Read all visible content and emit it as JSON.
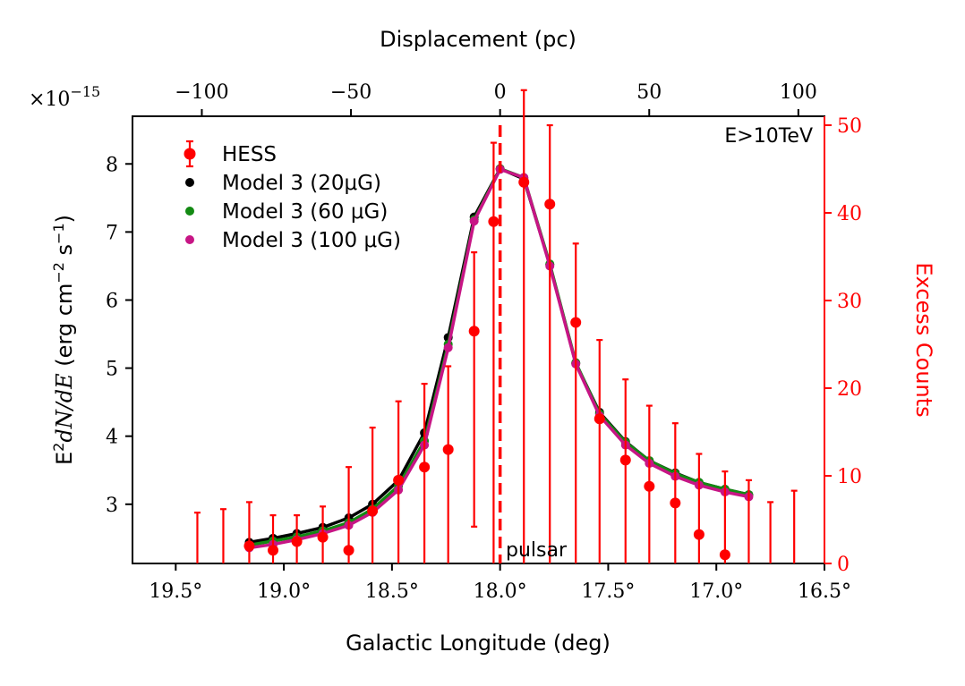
{
  "chart_data": {
    "type": "line",
    "x_axis": {
      "label": "Galactic Longitude (deg)",
      "range": [
        19.7,
        16.5
      ],
      "reversed": true,
      "ticks": [
        19.5,
        19.0,
        18.5,
        18.0,
        17.5,
        17.0,
        16.5
      ],
      "tick_labels": [
        "19.5°",
        "19.0°",
        "18.5°",
        "18.0°",
        "17.5°",
        "17.0°",
        "16.5°"
      ]
    },
    "top_axis": {
      "label": "Displacement (pc)",
      "ticks": [
        -100,
        -50,
        0,
        50,
        100
      ],
      "tick_labels": [
        "−100",
        "−50",
        "0",
        "50",
        "100"
      ],
      "deg_at_zero": 18.0,
      "pc_per_deg": 72.5
    },
    "y_axis": {
      "label_prefix": "E",
      "label_sup": "2",
      "label_math": "dN/dE",
      "label_units": "(erg cm",
      "label_sup2": "−2",
      "label_units2": " s",
      "label_sup3": "−1",
      "label_close": ")",
      "range": [
        2.13,
        8.7
      ],
      "ticks": [
        3,
        4,
        5,
        6,
        7,
        8
      ],
      "tick_labels": [
        "3",
        "4",
        "5",
        "6",
        "7",
        "8"
      ],
      "multiplier_base": "×10",
      "multiplier_exp": "−15"
    },
    "y2_axis": {
      "label": "Excess Counts",
      "color": "#ff0000",
      "range": [
        0,
        50
      ],
      "ticks": [
        0,
        10,
        20,
        30,
        40,
        50
      ],
      "tick_labels": [
        "0",
        "10",
        "20",
        "30",
        "40",
        "50"
      ]
    },
    "annotations": {
      "energy": "E>10TeV",
      "pulsar": "pulsar",
      "pulsar_longitude": 18.0
    },
    "legend": {
      "placement": "upper-left",
      "entries": [
        {
          "name": "HESS",
          "color": "#ff0000",
          "marker": "errorbar"
        },
        {
          "name": "Model 3 (20μG)",
          "color": "#000000",
          "marker": "dot"
        },
        {
          "name": "Model 3 (60 μG)",
          "color": "#138a13",
          "marker": "dot"
        },
        {
          "name": "Model 3 (100 μG)",
          "color": "#c71585",
          "marker": "dot"
        }
      ]
    },
    "series": [
      {
        "name": "Model 3 (20μG)",
        "color": "#000000",
        "x": [
          19.16,
          19.05,
          18.94,
          18.82,
          18.7,
          18.59,
          18.47,
          18.35,
          18.24,
          18.12,
          18.0,
          17.89,
          17.77,
          17.65,
          17.54,
          17.42,
          17.31,
          17.19,
          17.08,
          16.96,
          16.85
        ],
        "y": [
          2.44,
          2.5,
          2.57,
          2.66,
          2.8,
          3.0,
          3.35,
          4.05,
          5.45,
          7.22,
          7.93,
          7.78,
          6.52,
          5.07,
          4.35,
          3.92,
          3.64,
          3.46,
          3.32,
          3.22,
          3.14
        ]
      },
      {
        "name": "Model 3 (60 μG)",
        "color": "#138a13",
        "x": [
          19.16,
          19.05,
          18.94,
          18.82,
          18.7,
          18.59,
          18.47,
          18.35,
          18.24,
          18.12,
          18.0,
          17.89,
          17.77,
          17.65,
          17.54,
          17.42,
          17.31,
          17.19,
          17.08,
          16.96,
          16.85
        ],
        "y": [
          2.4,
          2.46,
          2.52,
          2.61,
          2.73,
          2.93,
          3.27,
          3.93,
          5.35,
          7.18,
          7.93,
          7.8,
          6.53,
          5.08,
          4.33,
          3.91,
          3.64,
          3.45,
          3.32,
          3.22,
          3.14
        ]
      },
      {
        "name": "Model 3 (100 μG)",
        "color": "#c71585",
        "x": [
          19.16,
          19.05,
          18.94,
          18.82,
          18.7,
          18.59,
          18.47,
          18.35,
          18.24,
          18.12,
          18.0,
          17.89,
          17.77,
          17.65,
          17.54,
          17.42,
          17.31,
          17.19,
          17.08,
          16.96,
          16.85
        ],
        "y": [
          2.36,
          2.41,
          2.48,
          2.57,
          2.69,
          2.88,
          3.21,
          3.87,
          5.3,
          7.16,
          7.92,
          7.8,
          6.5,
          5.06,
          4.3,
          3.87,
          3.6,
          3.41,
          3.28,
          3.18,
          3.11
        ]
      },
      {
        "name": "HESS",
        "color": "#ff0000",
        "axis": "y2",
        "x": [
          19.4,
          19.28,
          19.16,
          19.05,
          18.94,
          18.82,
          18.7,
          18.59,
          18.47,
          18.35,
          18.24,
          18.12,
          18.03,
          17.89,
          17.77,
          17.65,
          17.54,
          17.42,
          17.31,
          17.19,
          17.08,
          16.96,
          16.85,
          16.75,
          16.64
        ],
        "y": [
          null,
          null,
          2.0,
          1.5,
          2.5,
          3.0,
          1.5,
          6.0,
          9.5,
          11.0,
          13.0,
          26.5,
          39.0,
          43.5,
          41.0,
          27.5,
          16.5,
          11.8,
          8.8,
          6.9,
          3.3,
          1.0,
          null,
          null,
          null
        ],
        "err_low": [
          0,
          0,
          0,
          0,
          0,
          0,
          0,
          0,
          0,
          0,
          0,
          4.2,
          0,
          0,
          0,
          0,
          0,
          0,
          0,
          0,
          0,
          0,
          0,
          0,
          0
        ],
        "err_high": [
          5.8,
          6.2,
          7.0,
          5.5,
          5.5,
          6.5,
          11.0,
          15.5,
          18.5,
          20.5,
          22.5,
          35.5,
          48.0,
          54.0,
          50.0,
          36.5,
          25.5,
          21.0,
          18.0,
          16.0,
          12.5,
          10.5,
          9.5,
          7.0,
          8.3
        ]
      }
    ]
  }
}
